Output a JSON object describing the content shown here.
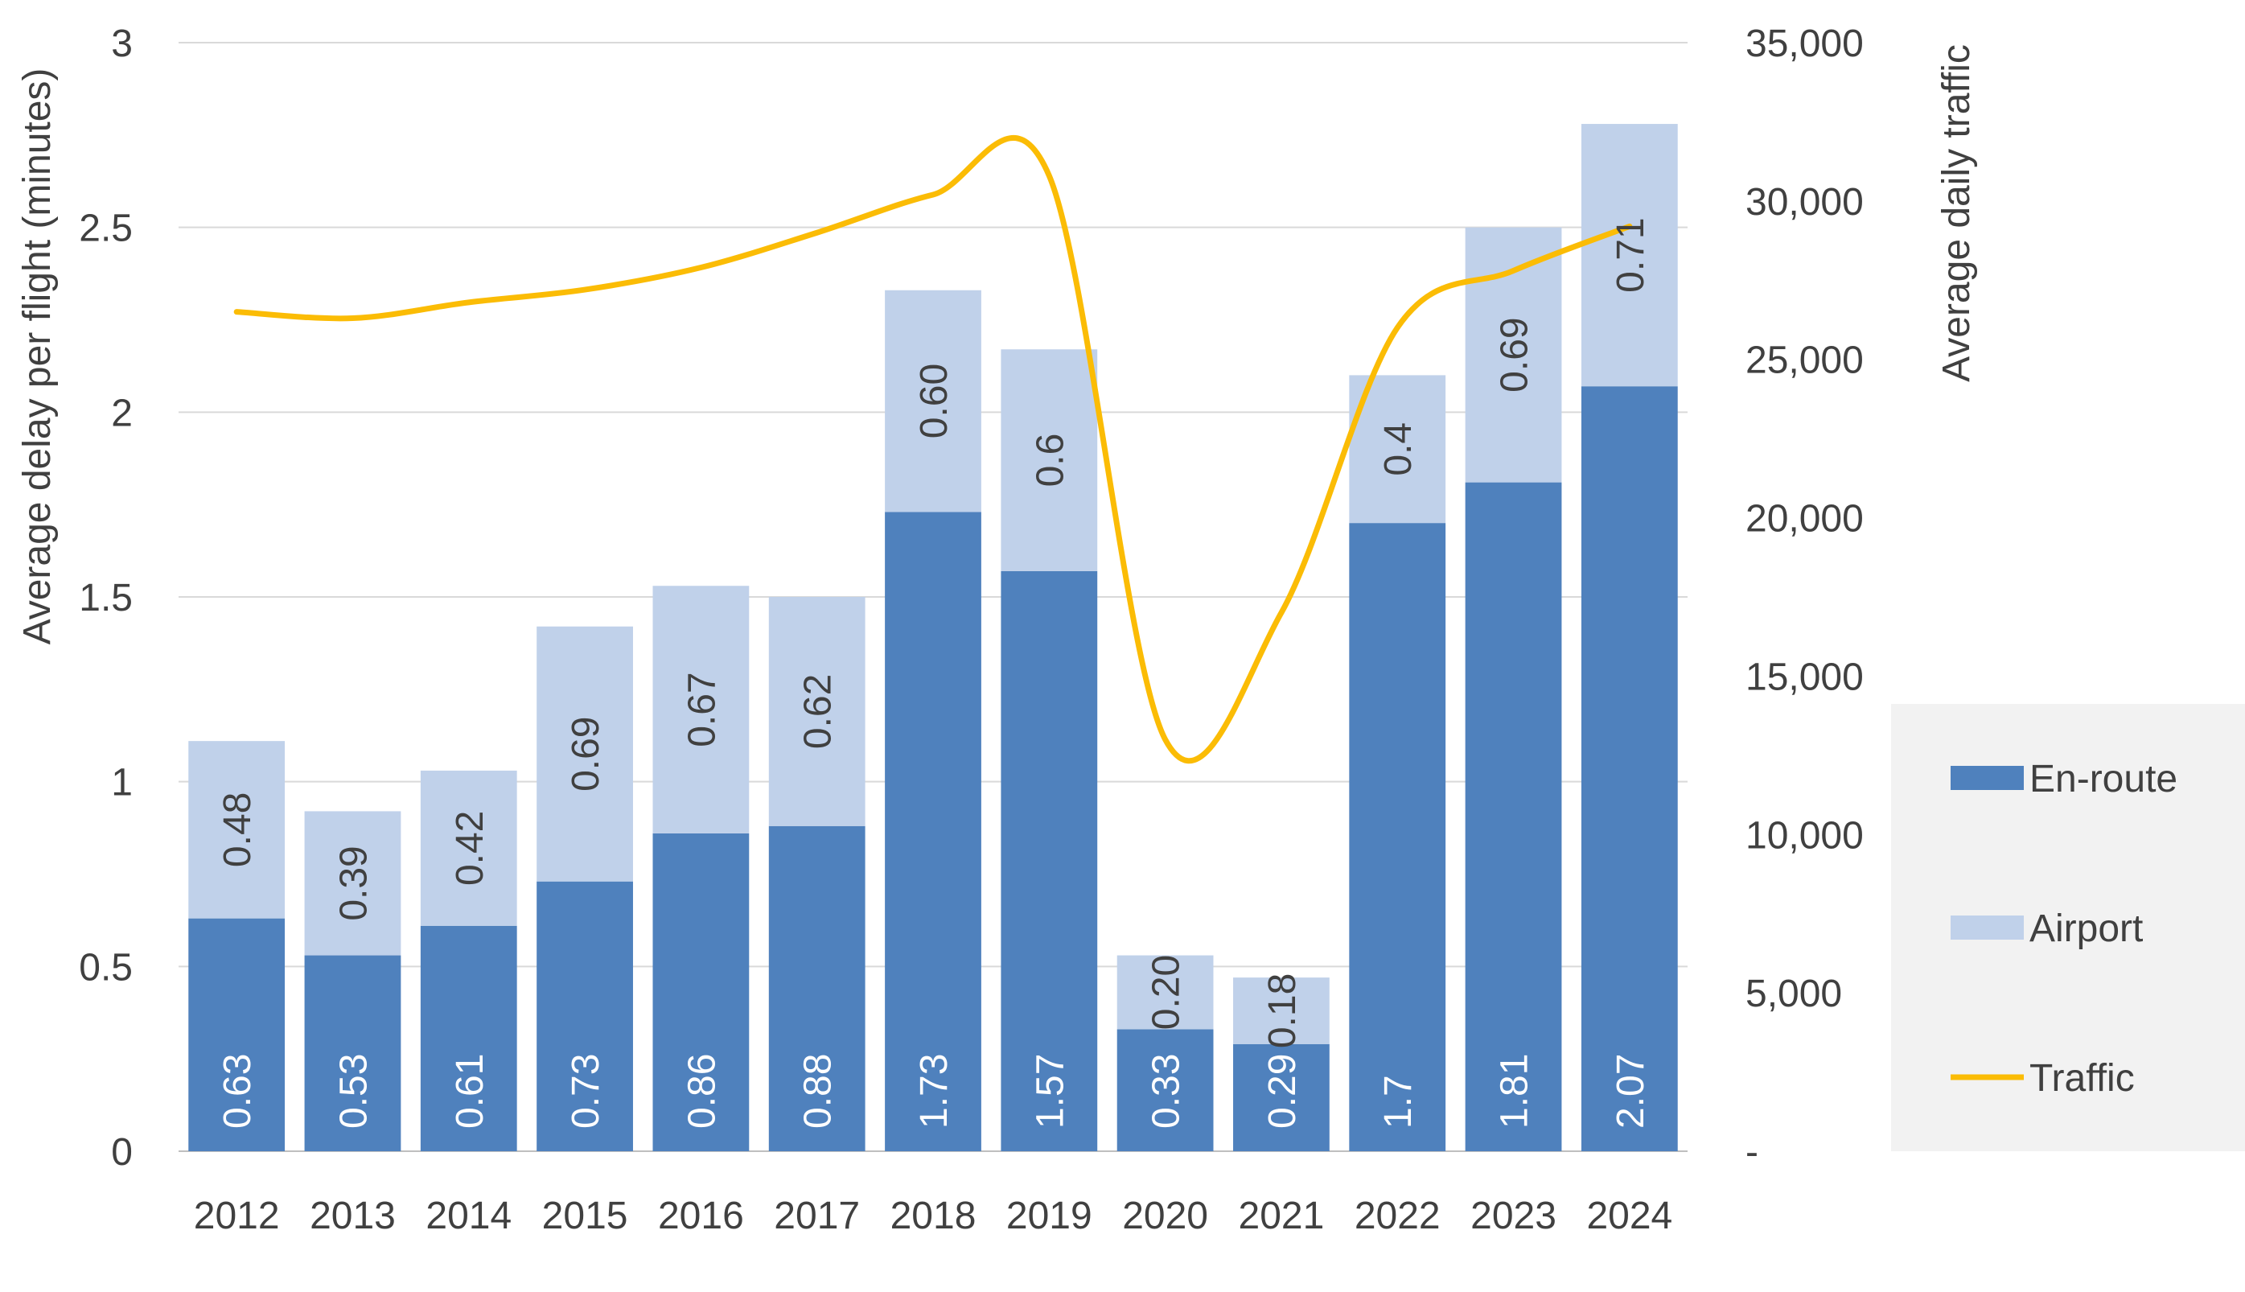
{
  "chart_data": {
    "type": "bar",
    "stacked": true,
    "categories": [
      "2012",
      "2013",
      "2014",
      "2015",
      "2016",
      "2017",
      "2018",
      "2019",
      "2020",
      "2021",
      "2022",
      "2023",
      "2024"
    ],
    "series": [
      {
        "name": "En-route",
        "axis": "left",
        "color": "#4f81bd",
        "values": [
          0.63,
          0.53,
          0.61,
          0.73,
          0.86,
          0.88,
          1.73,
          1.57,
          0.33,
          0.29,
          1.7,
          1.81,
          2.07
        ],
        "labels": [
          "0.63",
          "0.53",
          "0.61",
          "0.73",
          "0.86",
          "0.88",
          "1.73",
          "1.57",
          "0.33",
          "0.29",
          "1.7",
          "1.81",
          "2.07"
        ]
      },
      {
        "name": "Airport",
        "axis": "left",
        "color": "#c0d1ea",
        "values": [
          0.48,
          0.39,
          0.42,
          0.69,
          0.67,
          0.62,
          0.6,
          0.6,
          0.2,
          0.18,
          0.4,
          0.69,
          0.71
        ],
        "labels": [
          "0.48",
          "0.39",
          "0.42",
          "0.69",
          "0.67",
          "0.62",
          "0.60",
          "0.6",
          "0.20",
          "0.18",
          "0.4",
          "0.69",
          "0.71"
        ]
      },
      {
        "name": "Traffic",
        "axis": "right",
        "type": "line",
        "smooth": true,
        "color": "#fbbc05",
        "values": [
          26500,
          26300,
          26800,
          27200,
          27900,
          29000,
          30200,
          30800,
          13000,
          17000,
          26000,
          27800,
          29200
        ]
      }
    ],
    "y_left": {
      "label": "Average delay per flight (minutes)",
      "lim": [
        0,
        3
      ],
      "ticks": [
        0,
        0.5,
        1,
        1.5,
        2,
        2.5,
        3
      ],
      "tick_labels": [
        "0",
        "0.5",
        "1",
        "1.5",
        "2",
        "2.5",
        "3"
      ]
    },
    "y_right": {
      "label": "Average daily traffic",
      "lim": [
        0,
        35000
      ],
      "ticks": [
        0,
        5000,
        10000,
        15000,
        20000,
        25000,
        30000,
        35000
      ],
      "tick_labels": [
        "-",
        "5,000",
        "10,000",
        "15,000",
        "20,000",
        "25,000",
        "30,000",
        "35,000"
      ]
    },
    "grid": "horizontal",
    "legend": {
      "placement": "right",
      "items": [
        "En-route",
        "Airport",
        "Traffic"
      ]
    }
  }
}
